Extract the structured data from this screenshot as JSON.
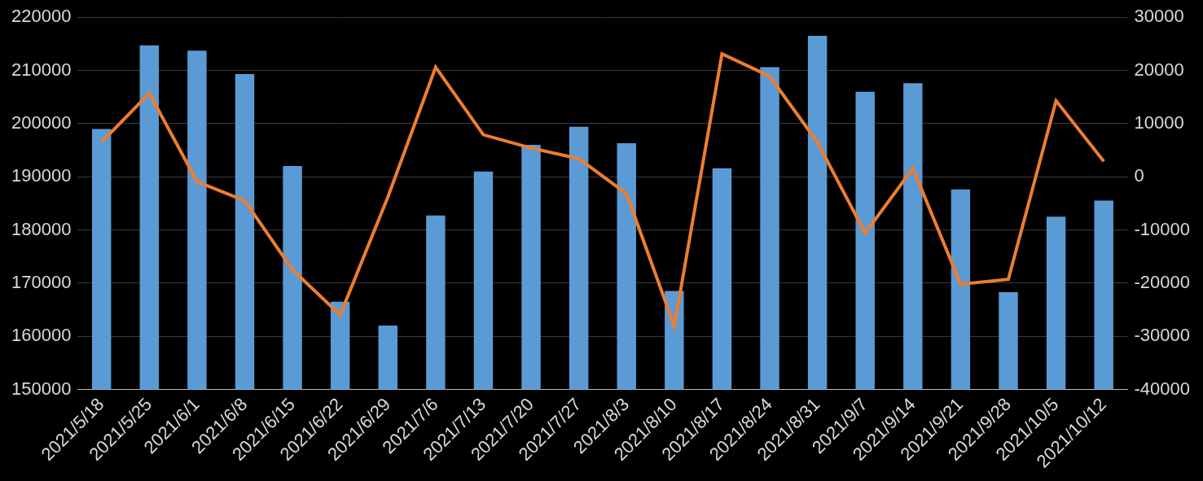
{
  "chart_data": {
    "type": "bar",
    "categories": [
      "2021/5/18",
      "2021/5/25",
      "2021/6/1",
      "2021/6/8",
      "2021/6/15",
      "2021/6/22",
      "2021/6/29",
      "2021/7/6",
      "2021/7/13",
      "2021/7/20",
      "2021/7/27",
      "2021/8/3",
      "2021/8/10",
      "2021/8/17",
      "2021/8/24",
      "2021/8/31",
      "2021/9/7",
      "2021/9/14",
      "2021/9/21",
      "2021/9/28",
      "2021/10/5",
      "2021/10/12"
    ],
    "series": [
      {
        "type": "bar",
        "color": "#5b9bd5",
        "values": [
          199000,
          214700,
          213700,
          209300,
          192000,
          166500,
          162000,
          182700,
          191000,
          196000,
          199400,
          196300,
          168500,
          191600,
          210600,
          216500,
          206000,
          207600,
          187600,
          168300,
          182500,
          185500
        ]
      },
      {
        "type": "line",
        "color": "#ed7d31",
        "axis": "y2",
        "values": [
          6500,
          15700,
          -900,
          -4500,
          -17500,
          -26000,
          -3800,
          20600,
          7900,
          5400,
          3400,
          -3200,
          -28100,
          23100,
          18900,
          6500,
          -10600,
          1600,
          -20200,
          -19300,
          14300,
          2900
        ]
      }
    ],
    "ylim": [
      150000,
      220000
    ],
    "yticks": [
      150000,
      160000,
      170000,
      180000,
      190000,
      200000,
      210000,
      220000
    ],
    "y2lim": [
      -40000,
      30000
    ],
    "y2ticks": [
      -40000,
      -30000,
      -20000,
      -10000,
      0,
      10000,
      20000,
      30000
    ],
    "grid": true
  }
}
